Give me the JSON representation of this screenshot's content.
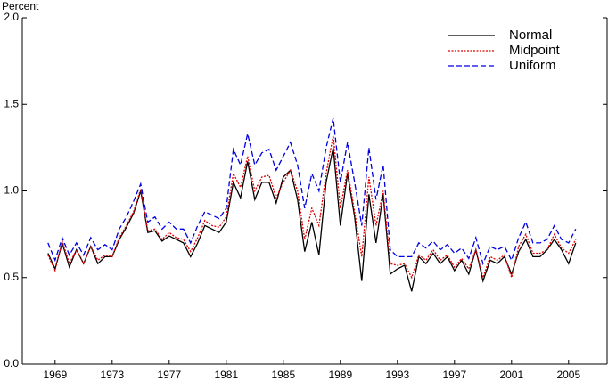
{
  "chart_data": {
    "type": "line",
    "y_label": "Percent",
    "x": [
      1968.5,
      1969,
      1969.5,
      1970,
      1970.5,
      1971,
      1971.5,
      1972,
      1972.5,
      1973,
      1973.5,
      1974,
      1974.5,
      1975,
      1975.5,
      1976,
      1976.5,
      1977,
      1977.5,
      1978,
      1978.5,
      1979,
      1979.5,
      1980,
      1980.5,
      1981,
      1981.5,
      1982,
      1982.5,
      1983,
      1983.5,
      1984,
      1984.5,
      1985,
      1985.5,
      1986,
      1986.5,
      1987,
      1987.5,
      1988,
      1988.5,
      1989,
      1989.5,
      1990,
      1990.5,
      1991,
      1991.5,
      1992,
      1992.5,
      1993,
      1993.5,
      1994,
      1994.5,
      1995,
      1995.5,
      1996,
      1996.5,
      1997,
      1997.5,
      1998,
      1998.5,
      1999,
      1999.5,
      2000,
      2000.5,
      2001,
      2001.5,
      2002,
      2002.5,
      2003,
      2003.5,
      2004,
      2004.5,
      2005,
      2005.5
    ],
    "series": [
      {
        "name": "Normal",
        "color": "#000000",
        "dash": "solid",
        "values": [
          0.64,
          0.55,
          0.7,
          0.56,
          0.66,
          0.58,
          0.68,
          0.58,
          0.62,
          0.62,
          0.72,
          0.79,
          0.87,
          1.0,
          0.76,
          0.77,
          0.71,
          0.74,
          0.72,
          0.7,
          0.62,
          0.7,
          0.8,
          0.78,
          0.76,
          0.82,
          1.05,
          0.96,
          1.17,
          0.95,
          1.05,
          1.05,
          0.93,
          1.08,
          1.12,
          0.95,
          0.65,
          0.82,
          0.63,
          1.05,
          1.25,
          0.8,
          1.1,
          0.85,
          0.48,
          0.98,
          0.7,
          0.98,
          0.52,
          0.55,
          0.57,
          0.42,
          0.62,
          0.58,
          0.64,
          0.58,
          0.62,
          0.54,
          0.6,
          0.52,
          0.66,
          0.48,
          0.6,
          0.58,
          0.62,
          0.52,
          0.65,
          0.72,
          0.62,
          0.62,
          0.66,
          0.72,
          0.66,
          0.58,
          0.7
        ]
      },
      {
        "name": "Midpoint",
        "color": "#e00000",
        "dash": "dotted",
        "values": [
          0.63,
          0.54,
          0.71,
          0.58,
          0.66,
          0.58,
          0.68,
          0.6,
          0.63,
          0.62,
          0.73,
          0.8,
          0.88,
          1.01,
          0.77,
          0.78,
          0.72,
          0.76,
          0.73,
          0.72,
          0.65,
          0.73,
          0.83,
          0.8,
          0.79,
          0.85,
          1.1,
          1.02,
          1.2,
          1.0,
          1.08,
          1.09,
          0.96,
          1.05,
          1.12,
          1.0,
          0.72,
          0.9,
          0.8,
          1.1,
          1.32,
          0.9,
          1.12,
          0.88,
          0.62,
          1.08,
          0.8,
          1.0,
          0.58,
          0.57,
          0.58,
          0.5,
          0.63,
          0.6,
          0.66,
          0.6,
          0.63,
          0.56,
          0.61,
          0.55,
          0.66,
          0.5,
          0.62,
          0.6,
          0.63,
          0.5,
          0.68,
          0.75,
          0.64,
          0.64,
          0.66,
          0.75,
          0.67,
          0.64,
          0.72
        ]
      },
      {
        "name": "Uniform",
        "color": "#0000e0",
        "dash": "dashed",
        "values": [
          0.7,
          0.6,
          0.73,
          0.63,
          0.7,
          0.63,
          0.73,
          0.66,
          0.69,
          0.66,
          0.78,
          0.85,
          0.94,
          1.04,
          0.82,
          0.85,
          0.78,
          0.82,
          0.78,
          0.78,
          0.7,
          0.8,
          0.88,
          0.86,
          0.84,
          0.9,
          1.24,
          1.15,
          1.33,
          1.15,
          1.22,
          1.24,
          1.12,
          1.2,
          1.28,
          1.15,
          0.9,
          1.1,
          1.0,
          1.25,
          1.42,
          1.05,
          1.28,
          1.05,
          0.8,
          1.25,
          0.95,
          1.15,
          0.66,
          0.62,
          0.62,
          0.62,
          0.7,
          0.67,
          0.71,
          0.66,
          0.69,
          0.64,
          0.67,
          0.61,
          0.73,
          0.58,
          0.68,
          0.66,
          0.68,
          0.6,
          0.73,
          0.82,
          0.7,
          0.7,
          0.72,
          0.8,
          0.72,
          0.7,
          0.78
        ]
      }
    ],
    "xlim": [
      1966.7,
      2007.7
    ],
    "xticks": [
      1969,
      1973,
      1977,
      1981,
      1985,
      1989,
      1993,
      1997,
      2001,
      2005
    ],
    "ylim": [
      0,
      2
    ],
    "yticks": [
      {
        "value": 0,
        "label": "0.0"
      },
      {
        "value": 0.5,
        "label": "0.5"
      },
      {
        "value": 1,
        "label": "1.0"
      },
      {
        "value": 1.5,
        "label": "1.5"
      },
      {
        "value": 2,
        "label": "2.0"
      }
    ],
    "legend": "top-right"
  }
}
